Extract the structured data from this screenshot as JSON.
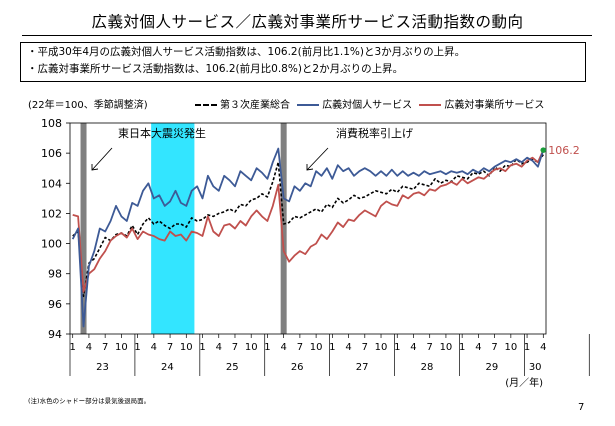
{
  "title": "広義対個人サービス／広義対事業所サービス活動指数の動向",
  "summary": [
    "・平成30年4月の広義対個人サービス活動指数は、106.2(前月比1.1%)と3か月ぶりの上昇。",
    "・広義対事業所サービス活動指数は、106.2(前月比0.8%)と2か月ぶりの上昇。"
  ],
  "footnote": "(注)水色のシャドー部分は景気後退局面。",
  "page_number": "7",
  "colors": {
    "blue": "#3d5a96",
    "red": "#c0504d",
    "black": "#000000",
    "recession": "#33e5ff",
    "event": "#808080",
    "end_dot": "#1a9e3a"
  },
  "chart_data": {
    "type": "line",
    "unit_note": "(22年＝100、季節調整済)",
    "ylim": [
      94,
      108
    ],
    "yticks": [
      94,
      96,
      98,
      100,
      102,
      104,
      106,
      108
    ],
    "x_months": "2011-01 .. 2018-04 (88 monthly points)",
    "xtick_labels": [
      "1",
      "4",
      "7",
      "10",
      "1",
      "4",
      "7",
      "10",
      "1",
      "4",
      "7",
      "10",
      "1",
      "4",
      "7",
      "10",
      "1",
      "4",
      "7",
      "10",
      "1",
      "4",
      "7",
      "10",
      "1",
      "4",
      "7",
      "10",
      "1",
      "4"
    ],
    "year_labels": [
      "23",
      "24",
      "25",
      "26",
      "27",
      "28",
      "29",
      "30"
    ],
    "x_unit_label": "(月／年)",
    "series": [
      {
        "name": "第３次産業総合",
        "style": "dashed",
        "color": "#000000",
        "values": [
          100.5,
          100.8,
          96.5,
          98.7,
          99.0,
          99.7,
          100.4,
          100.2,
          100.6,
          100.7,
          100.5,
          101.2,
          100.6,
          101.3,
          101.7,
          101.3,
          101.5,
          101.2,
          101.0,
          101.3,
          101.3,
          101.1,
          101.7,
          101.5,
          101.6,
          101.9,
          101.8,
          102.0,
          102.1,
          102.3,
          102.1,
          102.6,
          102.5,
          102.9,
          103.0,
          103.3,
          103.1,
          104.1,
          105.4,
          101.3,
          101.4,
          101.8,
          101.7,
          101.9,
          102.1,
          102.3,
          102.1,
          102.6,
          102.4,
          103.0,
          102.7,
          102.9,
          103.2,
          103.0,
          103.1,
          103.3,
          103.5,
          103.4,
          103.3,
          103.6,
          103.4,
          103.8,
          103.7,
          103.6,
          104.0,
          103.9,
          103.8,
          104.3,
          104.0,
          104.2,
          104.1,
          104.5,
          104.4,
          104.3,
          104.7,
          104.6,
          104.8,
          104.5,
          105.1,
          104.8,
          105.2,
          105.1,
          105.6,
          105.3,
          105.4,
          105.6,
          105.4,
          105.9
        ]
      },
      {
        "name": "広義対個人サービス",
        "style": "solid",
        "color": "#3d5a96",
        "values": [
          100.3,
          101.0,
          94.5,
          98.5,
          99.5,
          101.0,
          100.8,
          101.5,
          102.5,
          101.8,
          101.5,
          102.7,
          102.5,
          103.5,
          104.0,
          103.0,
          103.2,
          102.5,
          102.8,
          103.5,
          102.7,
          102.5,
          103.5,
          103.8,
          103.0,
          104.5,
          103.8,
          103.5,
          104.5,
          104.2,
          103.8,
          104.8,
          104.5,
          104.2,
          105.0,
          104.7,
          104.3,
          105.4,
          106.3,
          103.0,
          102.8,
          103.8,
          103.5,
          104.0,
          103.8,
          104.8,
          104.5,
          105.0,
          104.3,
          105.2,
          104.8,
          105.0,
          104.5,
          104.8,
          105.0,
          104.8,
          104.5,
          104.8,
          104.5,
          104.9,
          104.5,
          104.8,
          104.5,
          104.7,
          104.5,
          104.8,
          104.6,
          104.7,
          104.8,
          104.6,
          104.8,
          104.7,
          104.8,
          104.6,
          104.9,
          104.7,
          105.0,
          104.8,
          105.1,
          105.3,
          105.5,
          105.4,
          105.6,
          105.4,
          105.7,
          105.5,
          105.1,
          106.2
        ]
      },
      {
        "name": "広義対事業所サービス",
        "style": "solid",
        "color": "#c0504d",
        "values": [
          101.9,
          101.8,
          96.8,
          98.0,
          98.3,
          99.0,
          99.5,
          100.2,
          100.5,
          100.7,
          100.4,
          101.0,
          100.3,
          100.8,
          100.6,
          100.5,
          100.3,
          100.2,
          100.8,
          100.5,
          100.6,
          100.2,
          100.8,
          100.7,
          100.5,
          101.8,
          100.8,
          100.5,
          101.2,
          101.3,
          101.0,
          101.5,
          101.2,
          101.8,
          102.2,
          101.8,
          101.5,
          102.5,
          103.9,
          99.5,
          98.8,
          99.2,
          99.5,
          99.3,
          99.8,
          100.0,
          100.6,
          100.3,
          100.8,
          101.4,
          101.1,
          101.6,
          101.5,
          101.9,
          102.2,
          102.0,
          101.8,
          102.5,
          102.8,
          102.6,
          102.5,
          103.2,
          103.0,
          103.3,
          103.4,
          103.2,
          103.6,
          103.5,
          103.8,
          103.9,
          104.1,
          103.9,
          104.3,
          104.0,
          104.2,
          104.4,
          104.3,
          104.6,
          104.9,
          105.0,
          104.8,
          105.2,
          105.3,
          105.1,
          105.5,
          105.7,
          105.4,
          106.2
        ]
      }
    ],
    "recession_band": {
      "from": "2012-04",
      "to": "2012-11"
    },
    "event_lines": [
      {
        "month": "2011-03",
        "label": "東日本大震災発生"
      },
      {
        "month": "2014-04",
        "label": "消費税率引上げ"
      }
    ],
    "end_label": "106.2"
  }
}
